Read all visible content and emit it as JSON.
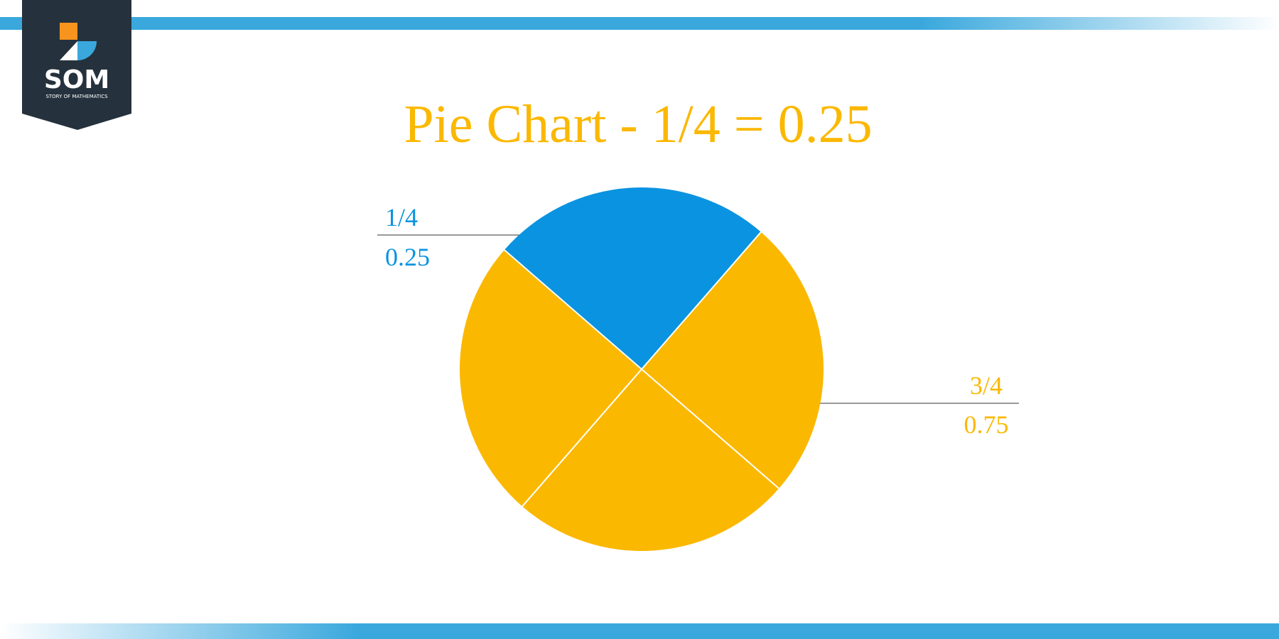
{
  "logo": {
    "name": "SOM",
    "tagline": "STORY OF MATHEMATICS"
  },
  "chart_data": {
    "type": "pie",
    "title": "Pie Chart - 1/4 = 0.25",
    "categories": [
      "1/4",
      "3/4"
    ],
    "values": [
      0.25,
      0.75
    ],
    "colors": [
      "#0a93e0",
      "#fbb800"
    ]
  }
}
